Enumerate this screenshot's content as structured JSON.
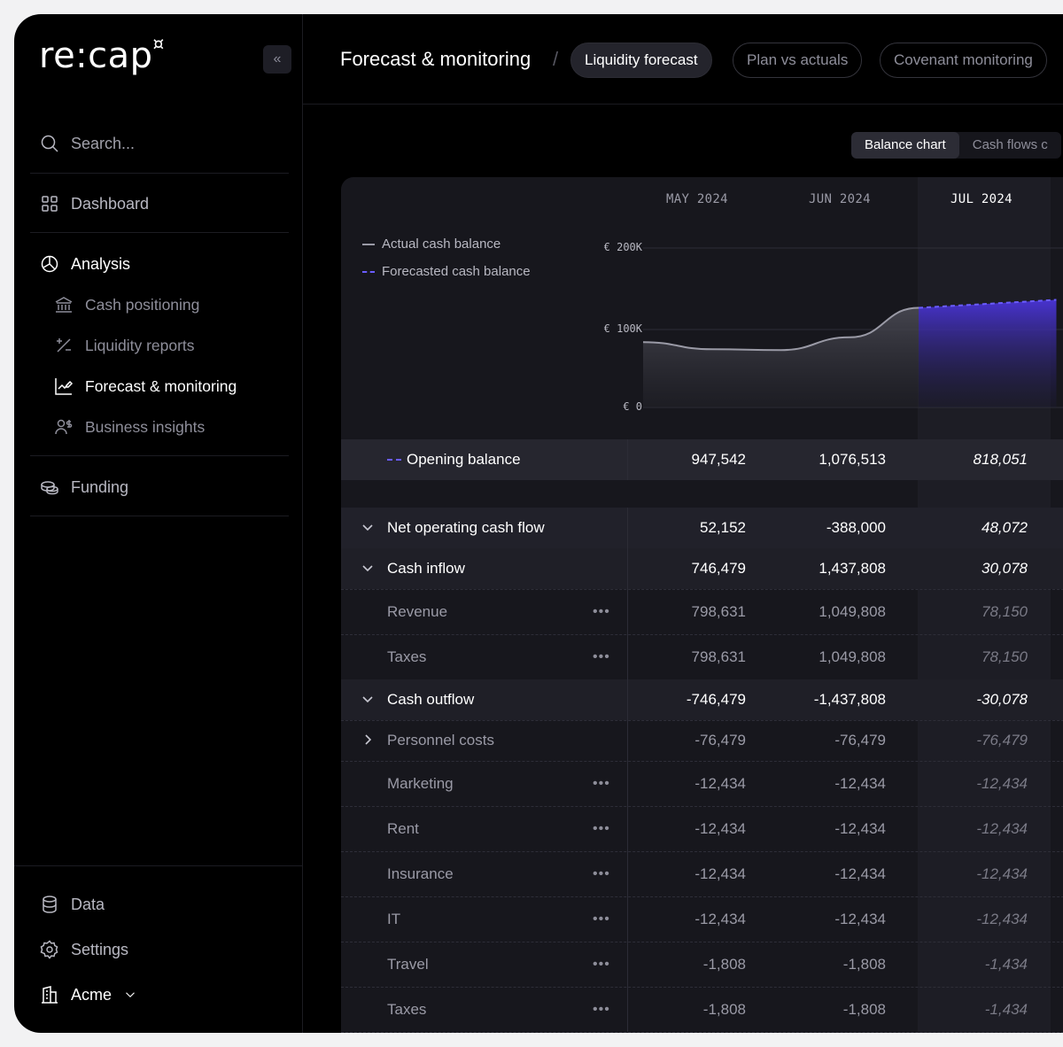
{
  "app": {
    "logo": "re:cap",
    "logo_mark": "¤"
  },
  "sidebar": {
    "search_placeholder": "Search...",
    "items": [
      {
        "label": "Dashboard",
        "icon": "grid-icon"
      },
      {
        "label": "Analysis",
        "icon": "pie-icon"
      },
      {
        "label": "Cash positioning",
        "icon": "bank-icon"
      },
      {
        "label": "Liquidity reports",
        "icon": "percent-icon"
      },
      {
        "label": "Forecast & monitoring",
        "icon": "chart-edit-icon"
      },
      {
        "label": "Business insights",
        "icon": "users-dollar-icon"
      },
      {
        "label": "Funding",
        "icon": "coins-icon"
      }
    ],
    "bottom": [
      {
        "label": "Data",
        "icon": "database-icon"
      },
      {
        "label": "Settings",
        "icon": "gear-icon"
      },
      {
        "label": "Acme",
        "icon": "building-icon"
      }
    ]
  },
  "header": {
    "title": "Forecast & monitoring",
    "separator": "/",
    "tabs": [
      "Liquidity forecast",
      "Plan vs actuals",
      "Covenant monitoring"
    ]
  },
  "view_toggle": [
    "Balance chart",
    "Cash flows c"
  ],
  "chart": {
    "legend": [
      "Actual cash balance",
      "Forecasted cash balance"
    ],
    "months": [
      "MAY 2024",
      "JUN 2024",
      "JUL 2024"
    ],
    "yticks": [
      "€ 200K",
      "€ 100K",
      "€ 0"
    ],
    "colors": {
      "actual": "#9a9aa6",
      "forecast": "#6a5cff"
    }
  },
  "chart_data": {
    "type": "area",
    "series": [
      {
        "name": "Actual cash balance",
        "points": [
          [
            0,
            82
          ],
          [
            0.25,
            73
          ],
          [
            0.5,
            72
          ],
          [
            0.75,
            88
          ],
          [
            1,
            125
          ]
        ]
      },
      {
        "name": "Forecasted cash balance",
        "points": [
          [
            1,
            125
          ],
          [
            1.5,
            135
          ]
        ]
      }
    ],
    "ylim": [
      0,
      200
    ]
  },
  "table": {
    "opening": {
      "label": "Opening balance",
      "values": [
        "947,542",
        "1,076,513",
        "818,051"
      ]
    },
    "rows": [
      {
        "label": "Net operating cash flow",
        "values": [
          "52,152",
          "-388,000",
          "48,072"
        ],
        "style": "section",
        "chevron": "down"
      },
      {
        "label": "Cash inflow",
        "values": [
          "746,479",
          "1,437,808",
          "30,078"
        ],
        "style": "group",
        "chevron": "down"
      },
      {
        "label": "Revenue",
        "values": [
          "798,631",
          "1,049,808",
          "78,150"
        ],
        "style": "item",
        "dots": "•••"
      },
      {
        "label": "Taxes",
        "values": [
          "798,631",
          "1,049,808",
          "78,150"
        ],
        "style": "item",
        "dots": "•••"
      },
      {
        "label": "Cash outflow",
        "values": [
          "-746,479",
          "-1,437,808",
          "-30,078"
        ],
        "style": "group",
        "chevron": "down"
      },
      {
        "label": "Personnel costs",
        "values": [
          "-76,479",
          "-76,479",
          "-76,479"
        ],
        "style": "item",
        "chevron": "right"
      },
      {
        "label": "Marketing",
        "values": [
          "-12,434",
          "-12,434",
          "-12,434"
        ],
        "style": "item",
        "dots": "•••"
      },
      {
        "label": "Rent",
        "values": [
          "-12,434",
          "-12,434",
          "-12,434"
        ],
        "style": "item",
        "dots": "•••"
      },
      {
        "label": "Insurance",
        "values": [
          "-12,434",
          "-12,434",
          "-12,434"
        ],
        "style": "item",
        "dots": "•••"
      },
      {
        "label": "IT",
        "values": [
          "-12,434",
          "-12,434",
          "-12,434"
        ],
        "style": "item",
        "dots": "•••"
      },
      {
        "label": "Travel",
        "values": [
          "-1,808",
          "-1,808",
          "-1,434"
        ],
        "style": "item",
        "dots": "•••"
      },
      {
        "label": "Taxes",
        "values": [
          "-1,808",
          "-1,808",
          "-1,434"
        ],
        "style": "item",
        "dots": "•••"
      }
    ]
  }
}
